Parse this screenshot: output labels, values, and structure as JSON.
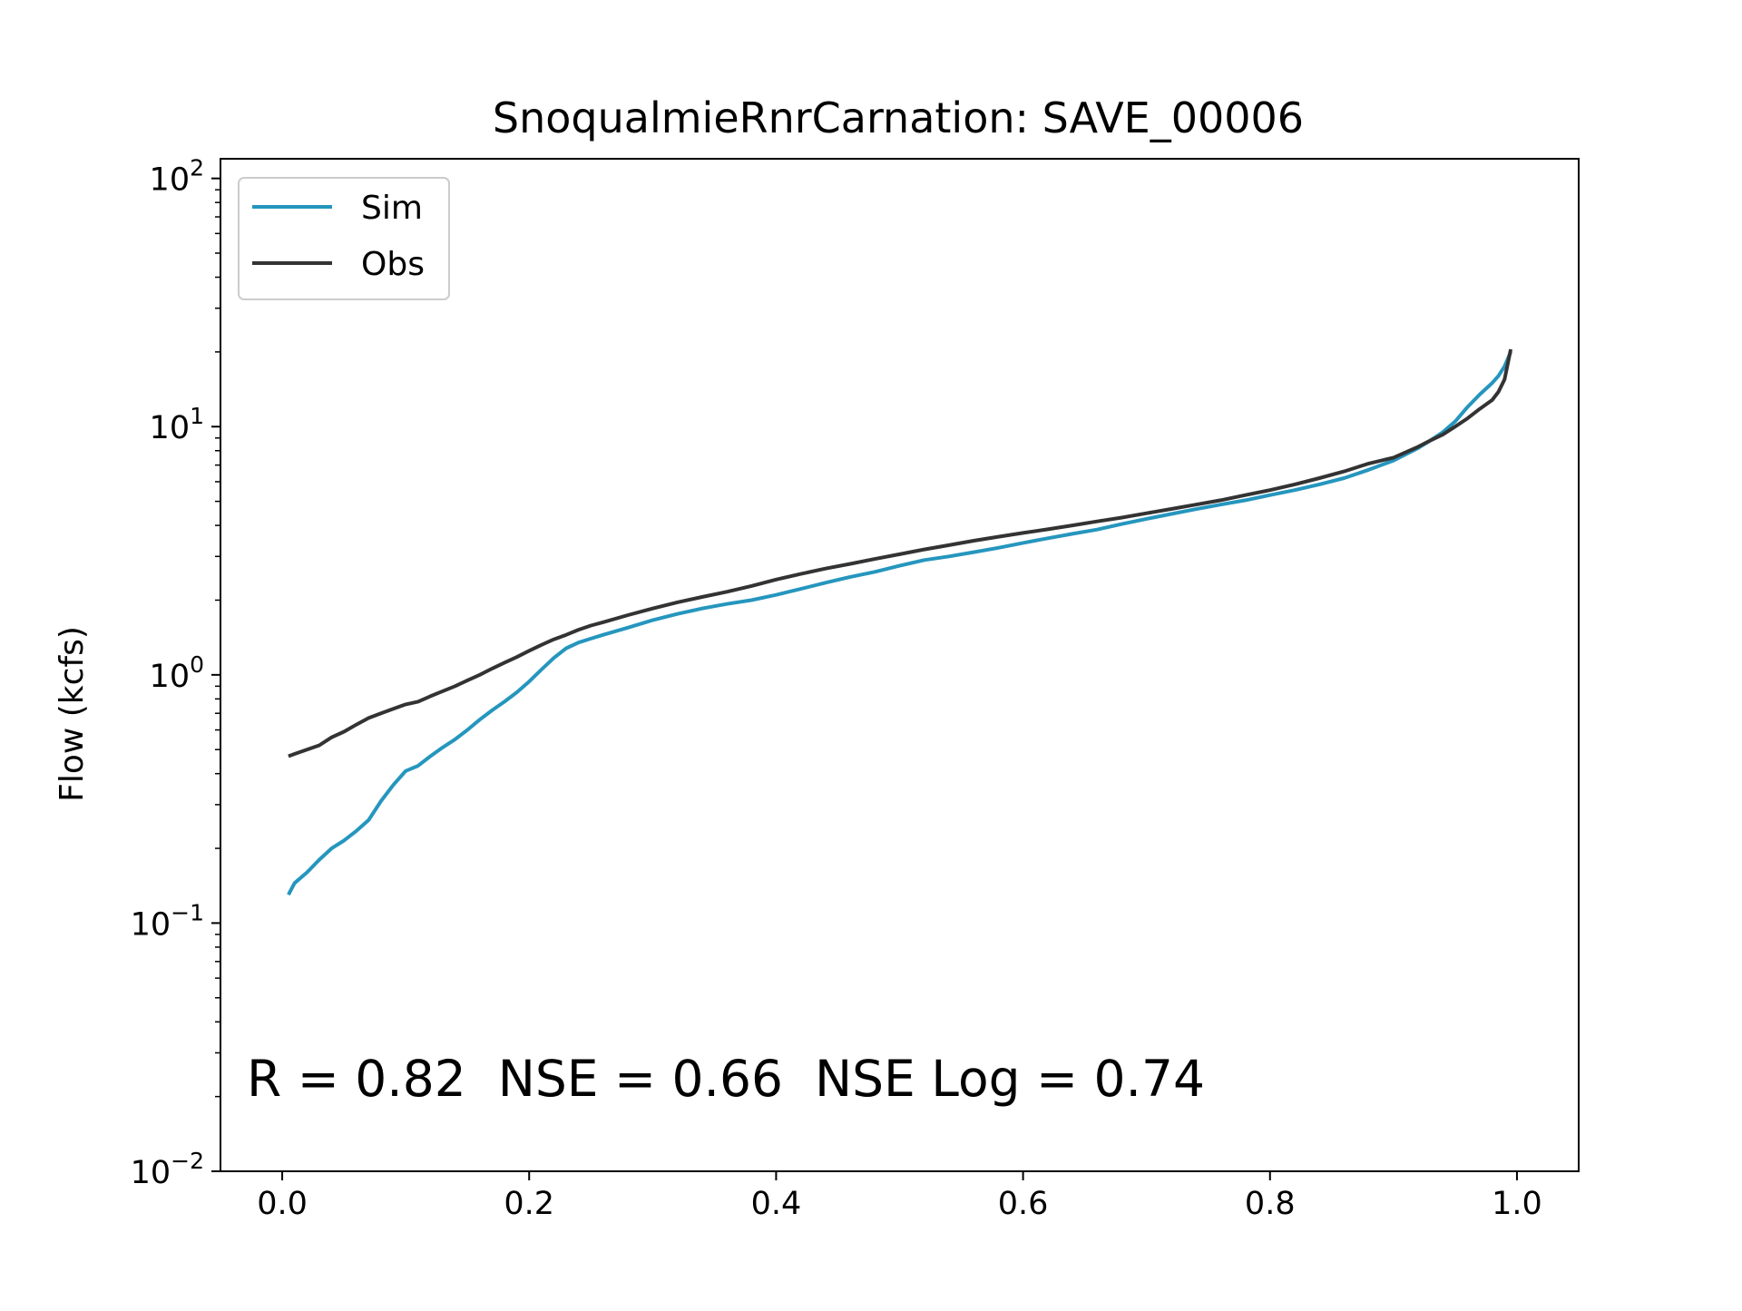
{
  "chart_data": {
    "type": "line",
    "title": "SnoqualmieRnrCarnation: SAVE_00006",
    "xlabel": "",
    "ylabel": "Flow (kcfs)",
    "y_scale": "log",
    "xlim": [
      -0.05,
      1.05
    ],
    "ylim": [
      0.01,
      120
    ],
    "x_ticks": [
      {
        "value": 0.0,
        "label": "0.0"
      },
      {
        "value": 0.2,
        "label": "0.2"
      },
      {
        "value": 0.4,
        "label": "0.4"
      },
      {
        "value": 0.6,
        "label": "0.6"
      },
      {
        "value": 0.8,
        "label": "0.8"
      },
      {
        "value": 1.0,
        "label": "1.0"
      }
    ],
    "y_ticks": [
      {
        "value": 0.01,
        "base": "10",
        "exp": "−2"
      },
      {
        "value": 0.1,
        "base": "10",
        "exp": "−1"
      },
      {
        "value": 1,
        "base": "10",
        "exp": "0"
      },
      {
        "value": 10,
        "base": "10",
        "exp": "1"
      },
      {
        "value": 100,
        "base": "10",
        "exp": "2"
      }
    ],
    "grid": false,
    "legend_position": "top-left",
    "annotation": "R = 0.82  NSE = 0.66  NSE Log = 0.74",
    "series": [
      {
        "name": "Sim",
        "color": "#2596be",
        "x": [
          0.005,
          0.01,
          0.02,
          0.03,
          0.04,
          0.05,
          0.06,
          0.07,
          0.08,
          0.09,
          0.1,
          0.11,
          0.12,
          0.13,
          0.14,
          0.15,
          0.16,
          0.17,
          0.18,
          0.19,
          0.2,
          0.21,
          0.22,
          0.23,
          0.24,
          0.25,
          0.26,
          0.28,
          0.3,
          0.32,
          0.34,
          0.36,
          0.38,
          0.4,
          0.42,
          0.44,
          0.46,
          0.48,
          0.5,
          0.52,
          0.54,
          0.56,
          0.58,
          0.6,
          0.62,
          0.64,
          0.66,
          0.68,
          0.7,
          0.72,
          0.74,
          0.76,
          0.78,
          0.8,
          0.82,
          0.84,
          0.86,
          0.88,
          0.9,
          0.92,
          0.93,
          0.94,
          0.95,
          0.96,
          0.97,
          0.98,
          0.985,
          0.99,
          0.995
        ],
        "values": [
          0.13,
          0.145,
          0.16,
          0.18,
          0.2,
          0.215,
          0.235,
          0.26,
          0.31,
          0.36,
          0.41,
          0.43,
          0.47,
          0.51,
          0.55,
          0.6,
          0.66,
          0.72,
          0.78,
          0.85,
          0.94,
          1.05,
          1.17,
          1.28,
          1.35,
          1.4,
          1.45,
          1.55,
          1.66,
          1.76,
          1.85,
          1.93,
          2.0,
          2.1,
          2.22,
          2.35,
          2.48,
          2.6,
          2.75,
          2.9,
          3.0,
          3.12,
          3.25,
          3.4,
          3.55,
          3.7,
          3.85,
          4.05,
          4.25,
          4.45,
          4.65,
          4.85,
          5.05,
          5.3,
          5.55,
          5.85,
          6.2,
          6.7,
          7.3,
          8.2,
          8.8,
          9.5,
          10.5,
          12.0,
          13.5,
          15.0,
          16.0,
          17.5,
          20.0
        ]
      },
      {
        "name": "Obs",
        "color": "#333333",
        "x": [
          0.005,
          0.01,
          0.02,
          0.03,
          0.04,
          0.05,
          0.06,
          0.07,
          0.08,
          0.09,
          0.1,
          0.11,
          0.12,
          0.13,
          0.14,
          0.15,
          0.16,
          0.17,
          0.18,
          0.19,
          0.2,
          0.21,
          0.22,
          0.23,
          0.24,
          0.25,
          0.26,
          0.28,
          0.3,
          0.32,
          0.34,
          0.36,
          0.38,
          0.4,
          0.42,
          0.44,
          0.46,
          0.48,
          0.5,
          0.52,
          0.54,
          0.56,
          0.58,
          0.6,
          0.62,
          0.64,
          0.66,
          0.68,
          0.7,
          0.72,
          0.74,
          0.76,
          0.78,
          0.8,
          0.82,
          0.84,
          0.86,
          0.88,
          0.9,
          0.92,
          0.93,
          0.94,
          0.95,
          0.96,
          0.97,
          0.98,
          0.985,
          0.99,
          0.995
        ],
        "values": [
          0.47,
          0.48,
          0.5,
          0.52,
          0.56,
          0.59,
          0.63,
          0.67,
          0.7,
          0.73,
          0.76,
          0.78,
          0.82,
          0.86,
          0.9,
          0.95,
          1.0,
          1.06,
          1.12,
          1.18,
          1.25,
          1.32,
          1.39,
          1.45,
          1.52,
          1.58,
          1.63,
          1.74,
          1.85,
          1.96,
          2.06,
          2.16,
          2.28,
          2.42,
          2.55,
          2.68,
          2.8,
          2.93,
          3.06,
          3.2,
          3.33,
          3.47,
          3.6,
          3.73,
          3.86,
          4.0,
          4.15,
          4.3,
          4.48,
          4.66,
          4.85,
          5.05,
          5.3,
          5.55,
          5.85,
          6.2,
          6.6,
          7.1,
          7.5,
          8.3,
          8.8,
          9.3,
          10.0,
          10.8,
          11.8,
          12.8,
          13.8,
          15.5,
          20.5
        ]
      }
    ]
  }
}
